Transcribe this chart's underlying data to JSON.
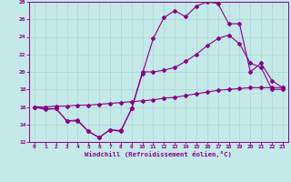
{
  "xlabel": "Windchill (Refroidissement éolien,°C)",
  "xlim": [
    -0.5,
    23.5
  ],
  "ylim": [
    12,
    28
  ],
  "xticks": [
    0,
    1,
    2,
    3,
    4,
    5,
    6,
    7,
    8,
    9,
    10,
    11,
    12,
    13,
    14,
    15,
    16,
    17,
    18,
    19,
    20,
    21,
    22,
    23
  ],
  "yticks": [
    12,
    14,
    16,
    18,
    20,
    22,
    24,
    26,
    28
  ],
  "bg_color": "#c5e8e8",
  "line_color": "#880088",
  "grid_color": "#aad4d4",
  "line1_x": [
    0,
    1,
    2,
    3,
    4,
    5,
    6,
    7,
    8,
    9,
    10,
    11,
    12,
    13,
    14,
    15,
    16,
    17,
    18,
    19,
    20,
    21,
    22,
    23
  ],
  "line1_y": [
    16.0,
    15.7,
    15.8,
    14.4,
    14.4,
    13.2,
    12.5,
    13.4,
    13.2,
    15.8,
    19.8,
    23.8,
    26.2,
    27.0,
    26.3,
    27.5,
    28.0,
    27.8,
    25.5,
    25.5,
    20.0,
    21.0,
    19.0,
    18.2
  ],
  "line2_x": [
    0,
    1,
    2,
    3,
    4,
    5,
    6,
    7,
    8,
    9,
    10,
    11,
    12,
    13,
    14,
    15,
    16,
    17,
    18,
    19,
    20,
    21,
    22,
    23
  ],
  "line2_y": [
    16.0,
    15.8,
    15.8,
    14.4,
    14.5,
    13.2,
    12.5,
    13.4,
    13.3,
    15.8,
    20.0,
    20.0,
    20.2,
    20.5,
    21.2,
    22.0,
    23.0,
    23.8,
    24.2,
    23.2,
    21.0,
    20.5,
    18.0,
    18.0
  ],
  "line3_x": [
    0,
    1,
    2,
    3,
    4,
    5,
    6,
    7,
    8,
    9,
    10,
    11,
    12,
    13,
    14,
    15,
    16,
    17,
    18,
    19,
    20,
    21,
    22,
    23
  ],
  "line3_y": [
    16.0,
    16.0,
    16.1,
    16.1,
    16.2,
    16.2,
    16.3,
    16.4,
    16.5,
    16.6,
    16.7,
    16.8,
    17.0,
    17.1,
    17.3,
    17.5,
    17.7,
    17.9,
    18.0,
    18.1,
    18.2,
    18.2,
    18.2,
    18.2
  ]
}
